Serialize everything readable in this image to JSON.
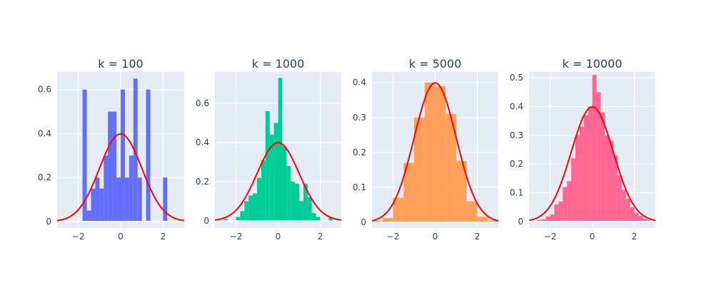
{
  "colors": {
    "plot_bg": "#E5ECF6",
    "grid": "#FFFFFF",
    "text": "#2A3F5F",
    "curve": "#FF0000"
  },
  "chart_data": [
    {
      "type": "bar",
      "title": "k = 100",
      "color": "#636EFA",
      "xlim": [
        -3,
        3
      ],
      "ylim": [
        0,
        0.68
      ],
      "xticks": [
        -2,
        0,
        2
      ],
      "yticks": [
        0,
        0.2,
        0.4,
        0.6
      ],
      "bin_width": 0.2,
      "bins": [
        {
          "x0": -1.8,
          "v": 0.6
        },
        {
          "x0": -1.6,
          "v": 0.05
        },
        {
          "x0": -1.4,
          "v": 0.15
        },
        {
          "x0": -1.2,
          "v": 0.2
        },
        {
          "x0": -1.0,
          "v": 0.15
        },
        {
          "x0": -0.8,
          "v": 0.3
        },
        {
          "x0": -0.6,
          "v": 0.5
        },
        {
          "x0": -0.4,
          "v": 0.5
        },
        {
          "x0": -0.2,
          "v": 0.2
        },
        {
          "x0": 0.0,
          "v": 0.6
        },
        {
          "x0": 0.2,
          "v": 0.2
        },
        {
          "x0": 0.4,
          "v": 0.3
        },
        {
          "x0": 0.6,
          "v": 0.65
        },
        {
          "x0": 0.8,
          "v": 0.2
        },
        {
          "x0": 1.2,
          "v": 0.6
        },
        {
          "x0": 2.0,
          "v": 0.2
        }
      ],
      "curve": "standard normal density"
    },
    {
      "type": "bar",
      "title": "k = 1000",
      "color": "#00CC96",
      "xlim": [
        -3,
        3
      ],
      "ylim": [
        0,
        0.76
      ],
      "xticks": [
        -2,
        0,
        2
      ],
      "yticks": [
        0,
        0.2,
        0.4,
        0.6
      ],
      "bin_width": 0.2,
      "bins": [
        {
          "x0": -2.6,
          "v": 0.01
        },
        {
          "x0": -2.0,
          "v": 0.02
        },
        {
          "x0": -1.8,
          "v": 0.05
        },
        {
          "x0": -1.6,
          "v": 0.1
        },
        {
          "x0": -1.4,
          "v": 0.13
        },
        {
          "x0": -1.2,
          "v": 0.14
        },
        {
          "x0": -1.0,
          "v": 0.22
        },
        {
          "x0": -0.8,
          "v": 0.31
        },
        {
          "x0": -0.6,
          "v": 0.56
        },
        {
          "x0": -0.4,
          "v": 0.44
        },
        {
          "x0": -0.2,
          "v": 0.5
        },
        {
          "x0": 0.0,
          "v": 0.73
        },
        {
          "x0": 0.2,
          "v": 0.38
        },
        {
          "x0": 0.4,
          "v": 0.28
        },
        {
          "x0": 0.6,
          "v": 0.2
        },
        {
          "x0": 0.8,
          "v": 0.19
        },
        {
          "x0": 1.0,
          "v": 0.1
        },
        {
          "x0": 1.2,
          "v": 0.19
        },
        {
          "x0": 1.4,
          "v": 0.12
        },
        {
          "x0": 1.6,
          "v": 0.04
        },
        {
          "x0": 1.8,
          "v": 0.02
        },
        {
          "x0": 2.4,
          "v": 0.02
        }
      ],
      "curve": "standard normal density"
    },
    {
      "type": "bar",
      "title": "k = 5000",
      "color": "#FFA15A",
      "xlim": [
        -3,
        3
      ],
      "ylim": [
        0,
        0.43
      ],
      "xticks": [
        -2,
        0,
        2
      ],
      "yticks": [
        0,
        0.1,
        0.2,
        0.3,
        0.4
      ],
      "bin_width": 0.5,
      "bins": [
        {
          "x0": -3.0,
          "v": 0.004
        },
        {
          "x0": -2.5,
          "v": 0.012
        },
        {
          "x0": -2.0,
          "v": 0.07
        },
        {
          "x0": -1.5,
          "v": 0.17
        },
        {
          "x0": -1.0,
          "v": 0.3
        },
        {
          "x0": -0.5,
          "v": 0.4
        },
        {
          "x0": 0.0,
          "v": 0.39
        },
        {
          "x0": 0.5,
          "v": 0.31
        },
        {
          "x0": 1.0,
          "v": 0.175
        },
        {
          "x0": 1.5,
          "v": 0.06
        },
        {
          "x0": 2.0,
          "v": 0.016
        },
        {
          "x0": 2.5,
          "v": 0.005
        }
      ],
      "curve": "standard normal density"
    },
    {
      "type": "bar",
      "title": "k = 10000",
      "color": "#FF6692",
      "xlim": [
        -3,
        3
      ],
      "ylim": [
        0,
        0.52
      ],
      "xticks": [
        -2,
        0,
        2
      ],
      "yticks": [
        0,
        0.1,
        0.2,
        0.3,
        0.4,
        0.5
      ],
      "bin_width": 0.2,
      "bins": [
        {
          "x0": -2.8,
          "v": 0.002
        },
        {
          "x0": -2.6,
          "v": 0.006
        },
        {
          "x0": -2.4,
          "v": 0.008
        },
        {
          "x0": -2.2,
          "v": 0.018
        },
        {
          "x0": -2.0,
          "v": 0.025
        },
        {
          "x0": -1.8,
          "v": 0.06
        },
        {
          "x0": -1.6,
          "v": 0.07
        },
        {
          "x0": -1.4,
          "v": 0.12
        },
        {
          "x0": -1.2,
          "v": 0.14
        },
        {
          "x0": -1.0,
          "v": 0.22
        },
        {
          "x0": -0.8,
          "v": 0.3
        },
        {
          "x0": -0.6,
          "v": 0.33
        },
        {
          "x0": -0.4,
          "v": 0.37
        },
        {
          "x0": -0.2,
          "v": 0.4
        },
        {
          "x0": 0.0,
          "v": 0.51
        },
        {
          "x0": 0.2,
          "v": 0.45
        },
        {
          "x0": 0.4,
          "v": 0.38
        },
        {
          "x0": 0.6,
          "v": 0.3
        },
        {
          "x0": 0.8,
          "v": 0.28
        },
        {
          "x0": 1.0,
          "v": 0.23
        },
        {
          "x0": 1.2,
          "v": 0.16
        },
        {
          "x0": 1.4,
          "v": 0.11
        },
        {
          "x0": 1.6,
          "v": 0.08
        },
        {
          "x0": 1.8,
          "v": 0.05
        },
        {
          "x0": 2.0,
          "v": 0.03
        },
        {
          "x0": 2.2,
          "v": 0.02
        },
        {
          "x0": 2.4,
          "v": 0.01
        },
        {
          "x0": 2.6,
          "v": 0.005
        }
      ],
      "curve": "standard normal density"
    }
  ]
}
